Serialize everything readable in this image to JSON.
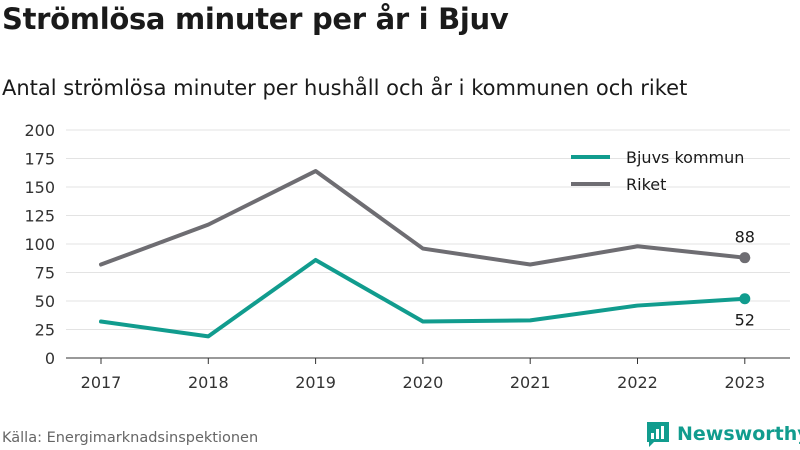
{
  "title": "Strömlösa minuter per år i Bjuv",
  "subtitle": "Antal strömlösa minuter per hushåll och år i kommunen och riket",
  "source": "Källa: Energimarknadsinspektionen",
  "brand": {
    "name": "Newsworthy",
    "icon": "bar-chart-logo-icon",
    "color": "#119c8e"
  },
  "chart_data": {
    "type": "line",
    "categories": [
      "2017",
      "2018",
      "2019",
      "2020",
      "2021",
      "2022",
      "2023"
    ],
    "ylim": [
      0,
      200
    ],
    "yticks": [
      0,
      25,
      50,
      75,
      100,
      125,
      150,
      175,
      200
    ],
    "grid": true,
    "legend_placement": "top-right",
    "series": [
      {
        "name": "Bjuvs kommun",
        "color": "#119c8e",
        "values": [
          32,
          19,
          86,
          32,
          33,
          46,
          52
        ],
        "end_label": "52"
      },
      {
        "name": "Riket",
        "color": "#6e6d72",
        "values": [
          82,
          117,
          164,
          96,
          82,
          98,
          88
        ],
        "end_label": "88"
      }
    ]
  }
}
